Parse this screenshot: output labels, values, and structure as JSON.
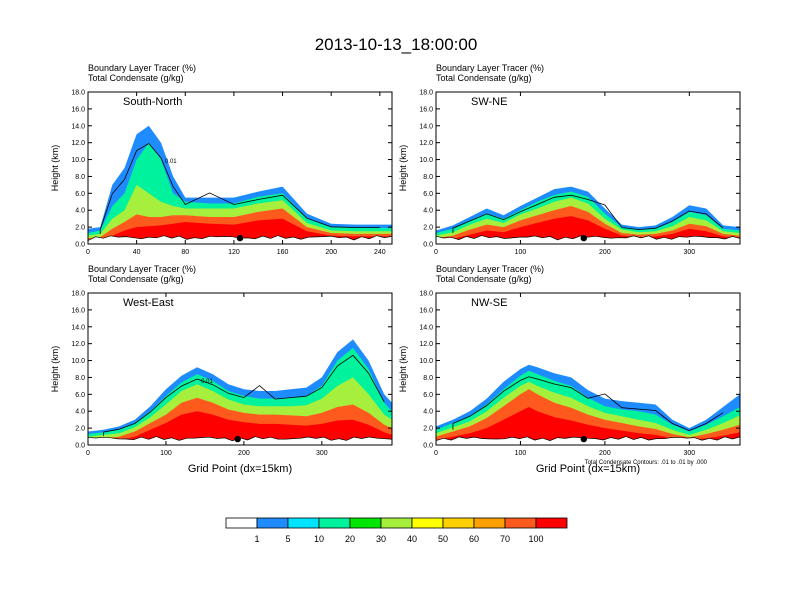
{
  "figure": {
    "title": "2013-10-13_18:00:00",
    "contour_note": "Total Condensate Contours: .01 to .01 by .000"
  },
  "colors": {
    "white": "#ffffff",
    "c1": "#1e8cff",
    "c5": "#00e4ff",
    "c10": "#00f29c",
    "c20": "#00e600",
    "c30": "#a6ef3c",
    "c40": "#ffff00",
    "c50": "#ffd000",
    "c60": "#ffa000",
    "c70": "#ff5a1e",
    "c100": "#ff0000",
    "contour": "#000000"
  },
  "colorbar": {
    "labels": [
      "1",
      "5",
      "10",
      "20",
      "30",
      "40",
      "50",
      "60",
      "70",
      "100"
    ]
  },
  "chart_data": [
    {
      "type": "heatmap",
      "panel": "South-North",
      "line1": "Boundary Layer Tracer   (%)",
      "line2": "Total Condensate   (g/kg)",
      "ylabel": "Height (km)",
      "xlabel": "",
      "ylim": [
        0,
        18
      ],
      "xlim": [
        0,
        250
      ],
      "yticks": [
        "0.0",
        "2.0",
        "4.0",
        "6.0",
        "8.0",
        "10.0",
        "12.0",
        "14.0",
        "16.0",
        "18.0"
      ],
      "yticks_v": [
        0,
        2,
        4,
        6,
        8,
        10,
        12,
        14,
        16,
        18
      ],
      "xticks": [
        "0",
        "40",
        "80",
        "120",
        "160",
        "200",
        "240"
      ],
      "xticks_v": [
        0,
        40,
        80,
        120,
        160,
        200,
        240
      ],
      "marker_x": 125,
      "contour_label": "0.01",
      "layers": [
        {
          "class": 1,
          "x": [
            0,
            10,
            20,
            30,
            40,
            50,
            60,
            70,
            80,
            100,
            120,
            140,
            160,
            180,
            200,
            220,
            240,
            250
          ],
          "top": [
            1.8,
            2,
            7,
            9,
            13,
            14,
            12,
            8,
            5.5,
            5.5,
            5.5,
            6.2,
            6.8,
            3.6,
            2.4,
            2.3,
            2.3,
            2.3
          ]
        },
        {
          "class": 10,
          "x": [
            0,
            10,
            20,
            30,
            40,
            50,
            60,
            70,
            80,
            100,
            120,
            140,
            160,
            180,
            200,
            220,
            240,
            250
          ],
          "top": [
            1.3,
            1.6,
            4.5,
            6,
            10,
            12,
            10,
            6,
            5,
            4.8,
            4.8,
            5.6,
            6,
            3,
            2,
            1.9,
            1.9,
            1.9
          ]
        },
        {
          "class": 30,
          "x": [
            0,
            10,
            20,
            30,
            40,
            50,
            60,
            70,
            80,
            100,
            120,
            140,
            160,
            180,
            200,
            220,
            240,
            250
          ],
          "top": [
            1,
            1.2,
            3,
            4,
            7,
            6,
            5,
            4.5,
            4.2,
            4.2,
            4.2,
            4.8,
            5.2,
            2.5,
            1.6,
            1.5,
            1.5,
            1.5
          ]
        },
        {
          "class": 70,
          "x": [
            0,
            10,
            20,
            30,
            40,
            50,
            60,
            70,
            80,
            100,
            120,
            140,
            160,
            180,
            200,
            220,
            240,
            250
          ],
          "top": [
            0.7,
            0.8,
            1.8,
            2.6,
            3.5,
            3.2,
            3.2,
            3.4,
            3.4,
            3.2,
            3.2,
            3.8,
            4.2,
            2,
            1.3,
            1.2,
            1.2,
            1.2
          ]
        },
        {
          "class": 100,
          "x": [
            0,
            10,
            20,
            30,
            40,
            50,
            60,
            70,
            80,
            100,
            120,
            140,
            160,
            180,
            200,
            220,
            240,
            250
          ],
          "top": [
            0.4,
            0.5,
            1,
            1.6,
            2,
            2.1,
            2.2,
            2.4,
            2.6,
            2.4,
            2.3,
            2.8,
            3,
            1.5,
            1,
            0.9,
            0.9,
            0.9
          ]
        }
      ]
    },
    {
      "type": "heatmap",
      "panel": "SW-NE",
      "line1": "Boundary Layer Tracer   (%)",
      "line2": "Total Condensate   (g/kg)",
      "ylabel": "Height (km)",
      "xlabel": "",
      "ylim": [
        0,
        18
      ],
      "xlim": [
        0,
        360
      ],
      "yticks": [
        "0.0",
        "2.0",
        "4.0",
        "6.0",
        "8.0",
        "10.0",
        "12.0",
        "14.0",
        "16.0",
        "18.0"
      ],
      "yticks_v": [
        0,
        2,
        4,
        6,
        8,
        10,
        12,
        14,
        16,
        18
      ],
      "xticks": [
        "0",
        "100",
        "200",
        "300"
      ],
      "xticks_v": [
        0,
        100,
        200,
        300
      ],
      "marker_x": 175,
      "contour_label": "",
      "layers": [
        {
          "class": 1,
          "x": [
            0,
            20,
            40,
            60,
            80,
            100,
            120,
            140,
            160,
            180,
            200,
            220,
            240,
            260,
            280,
            300,
            320,
            340,
            360
          ],
          "top": [
            1.6,
            2.2,
            3.2,
            4.2,
            3.4,
            4.5,
            5.5,
            6.5,
            6.8,
            6.2,
            4.2,
            2.3,
            2,
            2.2,
            3.2,
            4.6,
            4.2,
            2.2,
            2
          ]
        },
        {
          "class": 10,
          "x": [
            0,
            20,
            40,
            60,
            80,
            100,
            120,
            140,
            160,
            180,
            200,
            220,
            240,
            260,
            280,
            300,
            320,
            340,
            360
          ],
          "top": [
            1.3,
            1.8,
            2.8,
            3.6,
            3,
            4,
            5,
            5.8,
            6.2,
            5.6,
            3.6,
            2,
            1.7,
            1.8,
            2.6,
            3.8,
            3.4,
            1.8,
            1.6
          ]
        },
        {
          "class": 30,
          "x": [
            0,
            20,
            40,
            60,
            80,
            100,
            120,
            140,
            160,
            180,
            200,
            220,
            240,
            260,
            280,
            300,
            320,
            340,
            360
          ],
          "top": [
            1,
            1.4,
            2.3,
            3,
            2.5,
            3.5,
            4.2,
            5,
            5.5,
            4.8,
            3,
            1.7,
            1.4,
            1.5,
            2.1,
            3.2,
            2.8,
            1.5,
            1.3
          ]
        },
        {
          "class": 70,
          "x": [
            0,
            20,
            40,
            60,
            80,
            100,
            120,
            140,
            160,
            180,
            200,
            220,
            240,
            260,
            280,
            300,
            320,
            340,
            360
          ],
          "top": [
            0.7,
            1,
            1.7,
            2.3,
            2,
            2.8,
            3.4,
            4,
            4.5,
            3.8,
            2.4,
            1.3,
            1.1,
            1.2,
            1.6,
            2.4,
            2.1,
            1.2,
            1
          ]
        },
        {
          "class": 100,
          "x": [
            0,
            20,
            40,
            60,
            80,
            100,
            120,
            140,
            160,
            180,
            200,
            220,
            240,
            260,
            280,
            300,
            320,
            340,
            360
          ],
          "top": [
            0.4,
            0.6,
            1.1,
            1.6,
            1.4,
            2,
            2.5,
            3,
            3.3,
            2.8,
            1.8,
            1,
            0.8,
            0.9,
            1.2,
            1.8,
            1.5,
            0.9,
            0.7
          ]
        }
      ]
    },
    {
      "type": "heatmap",
      "panel": "West-East",
      "line1": "Boundary Layer Tracer   (%)",
      "line2": "Total Condensate   (g/kg)",
      "ylabel": "Height (km)",
      "xlabel": "Grid Point (dx=15km)",
      "ylim": [
        0,
        18
      ],
      "xlim": [
        0,
        390
      ],
      "yticks": [
        "0.0",
        "2.0",
        "4.0",
        "6.0",
        "8.0",
        "10.0",
        "12.0",
        "14.0",
        "16.0",
        "18.0"
      ],
      "yticks_v": [
        0,
        2,
        4,
        6,
        8,
        10,
        12,
        14,
        16,
        18
      ],
      "xticks": [
        "0",
        "100",
        "200",
        "300"
      ],
      "xticks_v": [
        0,
        100,
        200,
        300
      ],
      "marker_x": 192,
      "contour_label": "0.01",
      "layers": [
        {
          "class": 1,
          "x": [
            0,
            20,
            40,
            60,
            80,
            100,
            120,
            140,
            160,
            180,
            200,
            220,
            240,
            260,
            280,
            300,
            320,
            340,
            360,
            380,
            390
          ],
          "top": [
            1.6,
            1.8,
            2.2,
            3,
            4.6,
            6.6,
            8.2,
            9.2,
            8.4,
            7.2,
            6.6,
            6.4,
            6.4,
            6.6,
            6.8,
            8,
            11,
            12.5,
            10,
            6,
            5
          ]
        },
        {
          "class": 10,
          "x": [
            0,
            20,
            40,
            60,
            80,
            100,
            120,
            140,
            160,
            180,
            200,
            220,
            240,
            260,
            280,
            300,
            320,
            340,
            360,
            380,
            390
          ],
          "top": [
            1.3,
            1.5,
            1.8,
            2.6,
            4,
            5.8,
            7.4,
            8.4,
            7.6,
            6.4,
            5.8,
            5.5,
            5.5,
            5.6,
            5.8,
            7,
            10,
            11.5,
            9,
            5,
            4
          ]
        },
        {
          "class": 30,
          "x": [
            0,
            20,
            40,
            60,
            80,
            100,
            120,
            140,
            160,
            180,
            200,
            220,
            240,
            260,
            280,
            300,
            320,
            340,
            360,
            380,
            390
          ],
          "top": [
            1,
            1.2,
            1.4,
            2.1,
            3.3,
            4.8,
            6.4,
            7.2,
            6.4,
            5.4,
            4.8,
            4.6,
            4.6,
            4.6,
            4.7,
            5.5,
            7,
            8,
            6,
            3.6,
            3
          ]
        },
        {
          "class": 70,
          "x": [
            0,
            20,
            40,
            60,
            80,
            100,
            120,
            140,
            160,
            180,
            200,
            220,
            240,
            260,
            280,
            300,
            320,
            340,
            360,
            380,
            390
          ],
          "top": [
            0.7,
            0.8,
            1,
            1.6,
            2.6,
            3.6,
            5,
            5.6,
            5,
            4.2,
            3.8,
            3.6,
            3.6,
            3.5,
            3.4,
            3.8,
            4.5,
            4.8,
            3.8,
            2.4,
            2
          ]
        },
        {
          "class": 100,
          "x": [
            0,
            20,
            40,
            60,
            80,
            100,
            120,
            140,
            160,
            180,
            200,
            220,
            240,
            260,
            280,
            300,
            320,
            340,
            360,
            380,
            390
          ],
          "top": [
            0.4,
            0.5,
            0.6,
            1,
            1.8,
            2.6,
            3.6,
            4,
            3.6,
            3,
            2.7,
            2.5,
            2.5,
            2.4,
            2.3,
            2.5,
            2.9,
            3,
            2.4,
            1.5,
            1.2
          ]
        }
      ]
    },
    {
      "type": "heatmap",
      "panel": "NW-SE",
      "line1": "Boundary Layer Tracer   (%)",
      "line2": "Total Condensate   (g/kg)",
      "ylabel": "Height (km)",
      "xlabel": "Grid Point (dx=15km)",
      "ylim": [
        0,
        18
      ],
      "xlim": [
        0,
        360
      ],
      "yticks": [
        "0.0",
        "2.0",
        "4.0",
        "6.0",
        "8.0",
        "10.0",
        "12.0",
        "14.0",
        "16.0",
        "18.0"
      ],
      "yticks_v": [
        0,
        2,
        4,
        6,
        8,
        10,
        12,
        14,
        16,
        18
      ],
      "xticks": [
        "0",
        "100",
        "200",
        "300"
      ],
      "xticks_v": [
        0,
        100,
        200,
        300
      ],
      "marker_x": 175,
      "contour_label": "",
      "layers": [
        {
          "class": 1,
          "x": [
            0,
            20,
            40,
            60,
            80,
            100,
            110,
            120,
            140,
            160,
            180,
            200,
            220,
            240,
            260,
            280,
            300,
            320,
            340,
            360
          ],
          "top": [
            2.2,
            3,
            4,
            5.5,
            7.5,
            9,
            9.5,
            9.2,
            8.5,
            8,
            6.5,
            5.5,
            5.2,
            5,
            4.8,
            3,
            2,
            3,
            4.5,
            6
          ]
        },
        {
          "class": 10,
          "x": [
            0,
            20,
            40,
            60,
            80,
            100,
            110,
            120,
            140,
            160,
            180,
            200,
            220,
            240,
            260,
            280,
            300,
            320,
            340,
            360
          ],
          "top": [
            1.8,
            2.6,
            3.4,
            4.8,
            6.6,
            8.2,
            8.8,
            8.4,
            7.6,
            7,
            5.6,
            4.6,
            4.2,
            4,
            3.6,
            2.4,
            1.6,
            2.4,
            3.4,
            4.5
          ]
        },
        {
          "class": 30,
          "x": [
            0,
            20,
            40,
            60,
            80,
            100,
            110,
            120,
            140,
            160,
            180,
            200,
            220,
            240,
            260,
            280,
            300,
            320,
            340,
            360
          ],
          "top": [
            1.4,
            2.1,
            2.8,
            4,
            5.6,
            7,
            7.5,
            7,
            6.2,
            5.6,
            4.6,
            3.8,
            3.4,
            3,
            2.6,
            1.8,
            1.2,
            1.8,
            2.6,
            3.5
          ]
        },
        {
          "class": 70,
          "x": [
            0,
            20,
            40,
            60,
            80,
            100,
            110,
            120,
            140,
            160,
            180,
            200,
            220,
            240,
            260,
            280,
            300,
            320,
            340,
            360
          ],
          "top": [
            1,
            1.6,
            2.2,
            3.2,
            4.6,
            6,
            6.6,
            6,
            5,
            4.4,
            3.6,
            3,
            2.6,
            2.2,
            1.9,
            1.3,
            0.9,
            1.3,
            1.8,
            2.4
          ]
        },
        {
          "class": 100,
          "x": [
            0,
            20,
            40,
            60,
            80,
            100,
            110,
            120,
            140,
            160,
            180,
            200,
            220,
            240,
            260,
            280,
            300,
            320,
            340,
            360
          ],
          "top": [
            0.6,
            1,
            1.4,
            2,
            3,
            4,
            4.5,
            4,
            3.3,
            2.9,
            2.4,
            2,
            1.7,
            1.4,
            1.2,
            0.8,
            0.6,
            0.8,
            1.1,
            1.5
          ]
        }
      ]
    }
  ]
}
